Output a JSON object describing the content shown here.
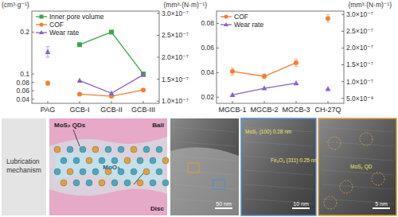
{
  "chart_data": [
    {
      "type": "line",
      "categories": [
        "PAG",
        "GCB-I",
        "GCB-II",
        "GCB-III"
      ],
      "y_label": "(cm³·g⁻¹)",
      "y2_label": "(mm³·(N·m)⁻¹)",
      "ylim": [
        0.03,
        0.25
      ],
      "yticks": [
        0.04,
        0.06,
        0.08,
        0.1,
        0.2
      ],
      "y2lim": [
        9.5e-08,
        3.05e-07
      ],
      "y2ticks": [
        {
          "value": 1e-07,
          "label": "1.0×10⁻⁷"
        },
        {
          "value": 1.5e-07,
          "label": "1.5×10⁻⁷"
        },
        {
          "value": 2e-07,
          "label": "2.0×10⁻⁷"
        },
        {
          "value": 2.5e-07,
          "label": "2.5×10⁻⁷"
        },
        {
          "value": 3e-07,
          "label": "3.0×10⁻⁷"
        }
      ],
      "legend": "upper left",
      "series": [
        {
          "name": "Inner pore volume",
          "color": "#3aa84a",
          "marker": "square",
          "values": [
            null,
            0.17,
            0.2,
            0.1
          ]
        },
        {
          "name": "COF",
          "color": "#f08030",
          "marker": "circle",
          "values": [
            null,
            0.052,
            0.047,
            0.062
          ]
        },
        {
          "name": "Wear rate",
          "color": "#8b5fc7",
          "marker": "triangle",
          "axis": "y2",
          "values": [
            null,
            1.47e-07,
            1.18e-07,
            1.6e-07
          ]
        },
        {
          "name": "COF",
          "type": "scatter",
          "color": "#f08030",
          "marker": "circle",
          "values": [
            0.078,
            null,
            null,
            null
          ],
          "errors": [
            0.005,
            null,
            null,
            null
          ]
        },
        {
          "name": "Wear rate",
          "type": "scatter",
          "color": "#8b5fc7",
          "marker": "triangle",
          "axis": "y2",
          "values": [
            2.12e-07,
            null,
            null,
            null
          ],
          "errors": [
            1.2e-08,
            null,
            null,
            null
          ]
        }
      ]
    },
    {
      "type": "line",
      "categories": [
        "MGCB-1",
        "MGCB-2",
        "MGCB-3",
        "CH-27Q"
      ],
      "y2_label": "(mm³·(N·m)⁻¹)",
      "ylim": [
        0.015,
        0.09
      ],
      "yticks": [
        0.02,
        0.04,
        0.06,
        0.08
      ],
      "y2lim": [
        3.5e-08,
        3.1e-07
      ],
      "y2ticks": [
        {
          "value": 5e-08,
          "label": "5.0×10⁻⁸"
        },
        {
          "value": 1e-07,
          "label": "1.0×10⁻⁷"
        },
        {
          "value": 1.5e-07,
          "label": "1.5×10⁻⁷"
        },
        {
          "value": 2e-07,
          "label": "2.0×10⁻⁷"
        },
        {
          "value": 2.5e-07,
          "label": "2.5×10⁻⁷"
        },
        {
          "value": 3e-07,
          "label": "3.0×10⁻⁷"
        }
      ],
      "legend": "upper left",
      "series": [
        {
          "name": "COF",
          "color": "#f08030",
          "marker": "circle",
          "values": [
            0.041,
            0.037,
            0.048,
            null
          ],
          "errors": [
            0.003,
            0.002,
            0.003,
            null
          ]
        },
        {
          "name": "Wear rate",
          "color": "#8b5fc7",
          "marker": "triangle",
          "axis": "y2",
          "values": [
            6e-08,
            8e-08,
            9.5e-08,
            null
          ]
        },
        {
          "name": "COF",
          "type": "scatter",
          "color": "#f08030",
          "marker": "circle",
          "values": [
            null,
            null,
            null,
            0.084
          ],
          "errors": [
            null,
            null,
            null,
            0.003
          ]
        },
        {
          "name": "Wear rate",
          "type": "scatter",
          "color": "#8b5fc7",
          "marker": "triangle",
          "axis": "y2",
          "values": [
            null,
            null,
            null,
            7.8e-08
          ]
        }
      ]
    }
  ],
  "lubrication_panel": {
    "title": "Lubrication mechanism",
    "diagram_labels": [
      "MoS₂ QDs",
      "Ball",
      "MoO₃",
      "Disc"
    ],
    "images": [
      {
        "scale_bar": "50 nm",
        "annotations": []
      },
      {
        "scale_bar": "10 nm",
        "annotations": [
          "MoS₂ (100) 0.28 nm",
          "Fe₃O₄ (311) 0.25 nm"
        ]
      },
      {
        "scale_bar": "5 nm",
        "annotations": [
          "MoS₂ QD"
        ]
      }
    ]
  }
}
